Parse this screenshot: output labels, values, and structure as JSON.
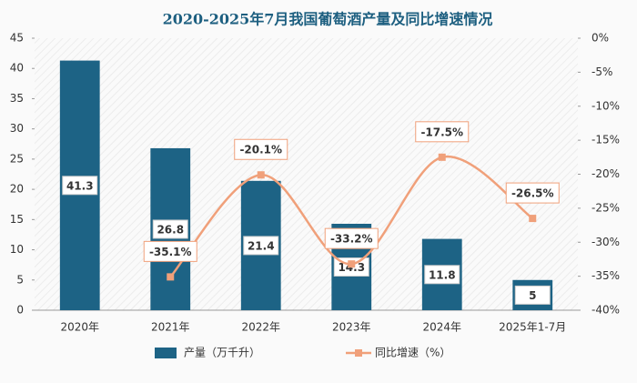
{
  "chart_data": {
    "type": "bar-line",
    "title": "2020-2025年7月我国葡萄酒产量及同比增速情况",
    "categories": [
      "2020年",
      "2021年",
      "2022年",
      "2023年",
      "2024年",
      "2025年1-7月"
    ],
    "series": [
      {
        "name": "产量（万千升）",
        "type": "bar",
        "color": "#1d6385",
        "values": [
          41.3,
          26.8,
          21.4,
          14.3,
          11.8,
          5
        ]
      },
      {
        "name": "同比增速（%）",
        "type": "line",
        "axis": "y2",
        "color": "#f0a07a",
        "values": [
          null,
          -35.1,
          -20.1,
          -33.2,
          -17.5,
          -26.5
        ],
        "value_labels": [
          null,
          "-35.1%",
          "-20.1%",
          "-33.2%",
          "-17.5%",
          "-26.5%"
        ]
      }
    ],
    "ylim": [
      0,
      45
    ],
    "yticks": [
      0,
      5,
      10,
      15,
      20,
      25,
      30,
      35,
      40,
      45
    ],
    "y2lim": [
      -40,
      0
    ],
    "y2ticks": [
      {
        "value": 0,
        "label": "0%"
      },
      {
        "value": -5,
        "label": "-5%"
      },
      {
        "value": -10,
        "label": "-10%"
      },
      {
        "value": -15,
        "label": "-15%"
      },
      {
        "value": -20,
        "label": "-20%"
      },
      {
        "value": -25,
        "label": "-25%"
      },
      {
        "value": -30,
        "label": "-30%"
      },
      {
        "value": -35,
        "label": "-35%"
      },
      {
        "value": -40,
        "label": "-40%"
      }
    ],
    "legend": "bottom"
  }
}
